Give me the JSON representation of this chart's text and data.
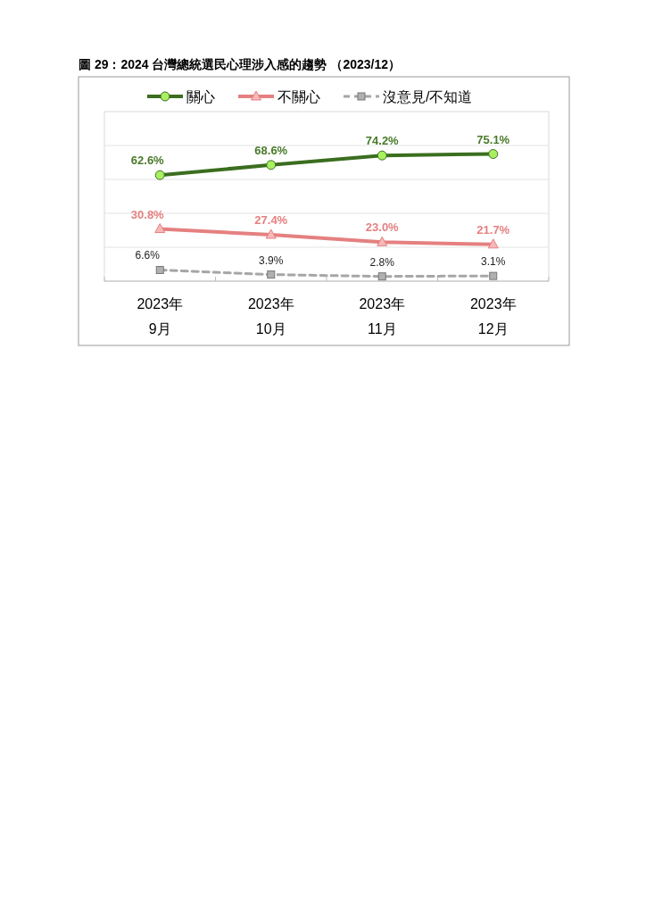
{
  "chart_data": {
    "type": "line",
    "title": "圖 29：2024 台灣總統選民心理涉入感的趨勢 （2023/12）",
    "categories": [
      "2023年\n9月",
      "2023年\n10月",
      "2023年\n11月",
      "2023年\n12月"
    ],
    "series": [
      {
        "name": "關心",
        "color": "#3b6e1f",
        "marker": "circle",
        "line_style": "solid",
        "values": [
          62.6,
          68.6,
          74.2,
          75.1
        ],
        "value_labels": [
          "62.6%",
          "68.6%",
          "74.2%",
          "75.1%"
        ]
      },
      {
        "name": "不關心",
        "color": "#e58080",
        "marker": "triangle",
        "line_style": "solid",
        "values": [
          30.8,
          27.4,
          23.0,
          21.7
        ],
        "value_labels": [
          "30.8%",
          "27.4%",
          "23.0%",
          "21.7%"
        ]
      },
      {
        "name": "沒意見/不知道",
        "color": "#a6a6a6",
        "marker": "square",
        "line_style": "dashed",
        "values": [
          6.6,
          3.9,
          2.8,
          3.1
        ],
        "value_labels": [
          "6.6%",
          "3.9%",
          "2.8%",
          "3.1%"
        ]
      }
    ],
    "tick_labels": "x",
    "grid": "y",
    "legend": "top"
  }
}
